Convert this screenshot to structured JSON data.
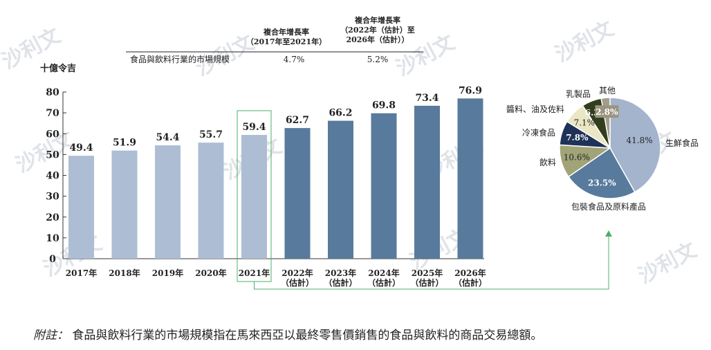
{
  "watermark_text": "沙利文",
  "chart_data": [
    {
      "type": "bar",
      "title": "",
      "ylabel": "十億令吉",
      "xlabel": "",
      "ylim": [
        0,
        80
      ],
      "yticks": [
        "0",
        "10",
        "20",
        "30",
        "40",
        "50",
        "60",
        "70",
        "80"
      ],
      "categories": [
        [
          "2017年"
        ],
        [
          "2018年"
        ],
        [
          "2019年"
        ],
        [
          "2020年"
        ],
        [
          "2021年"
        ],
        [
          "2022年",
          "（估計）"
        ],
        [
          "2023年",
          "（估計）"
        ],
        [
          "2024年",
          "（估計）"
        ],
        [
          "2025年",
          "（估計）"
        ],
        [
          "2026年",
          "（估計）"
        ]
      ],
      "values": [
        49.4,
        51.9,
        54.4,
        55.7,
        59.4,
        62.7,
        66.2,
        69.8,
        73.4,
        76.9
      ],
      "value_labels": [
        "49.4",
        "51.9",
        "54.4",
        "55.7",
        "59.4",
        "62.7",
        "66.2",
        "69.8",
        "73.4",
        "76.9"
      ],
      "bar_colors": [
        "#adbdd4",
        "#adbdd4",
        "#adbdd4",
        "#adbdd4",
        "#adbdd4",
        "#587a9c",
        "#587a9c",
        "#587a9c",
        "#587a9c",
        "#587a9c"
      ],
      "highlight_index": 4,
      "highlight_color": "#4caf6a",
      "cagr_table": {
        "headers": [
          [
            "複合年增長率",
            "（2017年至2021年）"
          ],
          [
            "複合年增長率",
            "（2022年（估計）至",
            "2026年（估計））"
          ]
        ],
        "row_label": "食品與飲料行業的市場規模",
        "row_values": [
          "4.7%",
          "5.2%"
        ]
      }
    },
    {
      "type": "pie",
      "labels": [
        "生鮮食品",
        "包裝食品及原料產品",
        "飲料",
        "冷凍食品",
        "醬料、油及佐料",
        "乳製品",
        "其他"
      ],
      "values": [
        41.8,
        23.5,
        10.6,
        7.8,
        7.1,
        6.3,
        2.8
      ],
      "value_labels": [
        "41.8%",
        "23.5%",
        "10.6%",
        "7.8%",
        "7.1%",
        "6.3%",
        "2.8%"
      ],
      "colors": [
        "#a3b4cc",
        "#587a9c",
        "#a0a476",
        "#1f3257",
        "#ebe6c3",
        "#323d1d",
        "#a39e8c"
      ],
      "label_colors": [
        "#222222",
        "#ffffff",
        "#222222",
        "#ffffff",
        "#222222",
        "#ffffff",
        "#ffffff"
      ]
    }
  ],
  "footnote": {
    "label": "附註：",
    "text": "食品與飲料行業的市場規模指在馬來西亞以最終零售價銷售的食品與飲料的商品交易總額。"
  }
}
